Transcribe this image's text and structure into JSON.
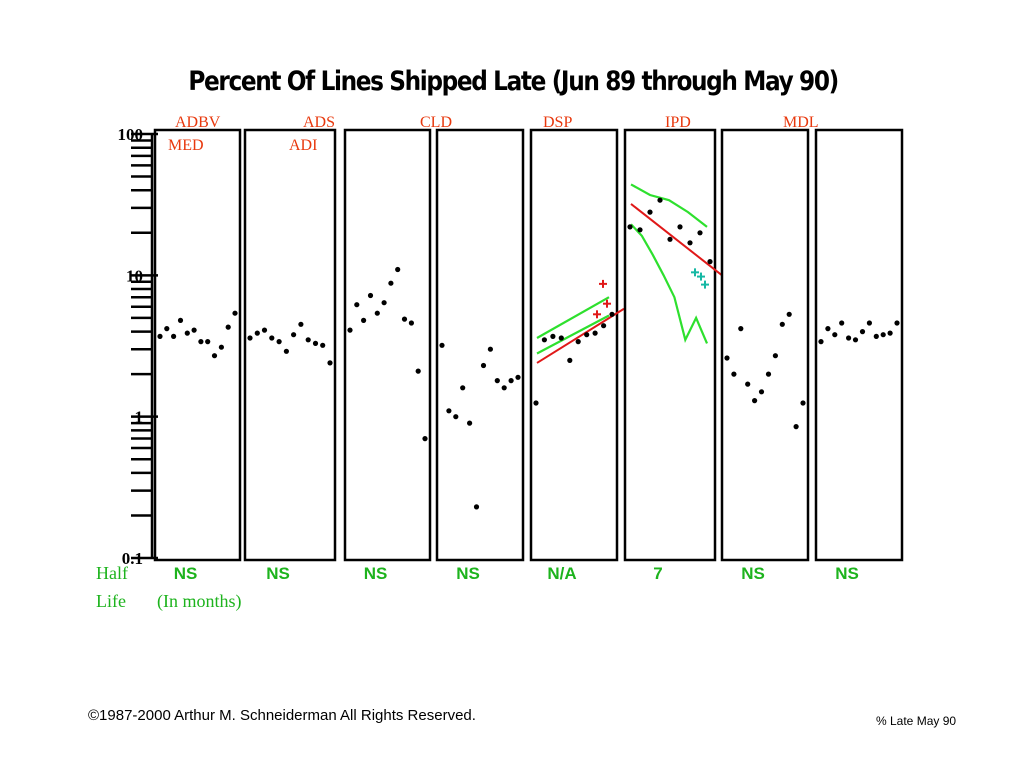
{
  "colors": {
    "label": "#e8380d",
    "half_life": "#1db31d",
    "fit_line": "#e01818",
    "plus_red": "#e01818",
    "plus_cyan": "#16b8a4",
    "points": "#000000"
  },
  "footer": {
    "copyright": "©1987-2000 Arthur M. Schneiderman  All Rights Reserved.",
    "slide_label": "% Late May 90"
  },
  "half_life": {
    "label_line1": "Half",
    "label_line2": "Life",
    "unit_note": "(In months)"
  },
  "chart_data": {
    "type": "scatter",
    "title": "Percent Of Lines Shipped Late (Jun 89 through May 90)",
    "y_scale": "log",
    "ylim": [
      0.1,
      100
    ],
    "y_ticks": [
      "100",
      "10",
      "1",
      "0.1"
    ],
    "panels": [
      {
        "labels": [
          "ADBV",
          "MED"
        ],
        "half_life": "NS",
        "points": [
          3.7,
          4.2,
          3.7,
          4.8,
          3.9,
          4.1,
          3.4,
          3.4,
          2.7,
          3.1,
          4.3,
          5.4
        ]
      },
      {
        "labels": [
          "ADS",
          "ADI"
        ],
        "half_life": "NS",
        "points": [
          3.6,
          3.9,
          4.1,
          3.6,
          3.4,
          2.9,
          3.8,
          4.5,
          3.5,
          3.3,
          3.2,
          2.4
        ]
      },
      {
        "labels": [
          "CLD"
        ],
        "half_life": "NS",
        "points": [
          4.1,
          6.2,
          4.8,
          7.2,
          5.4,
          6.4,
          8.8,
          11.0,
          4.9,
          4.6,
          2.1,
          0.7
        ]
      },
      {
        "labels": [],
        "half_life": "NS",
        "points": [
          3.2,
          1.1,
          1.0,
          1.6,
          0.9,
          0.23,
          2.3,
          3.0,
          1.8,
          1.6,
          1.8,
          1.9
        ]
      },
      {
        "labels": [
          "DSP"
        ],
        "half_life": "N/A",
        "points": [
          1.25,
          3.5,
          3.7,
          3.6,
          2.5,
          3.4,
          3.8,
          3.9,
          4.4,
          5.3
        ],
        "fit_line": [
          2.4,
          5.8
        ],
        "band_upper": [
          3.6,
          7.0
        ],
        "band_lower": [
          2.8,
          5.2
        ],
        "plus_red": [
          8.7,
          6.3,
          5.3
        ]
      },
      {
        "labels": [
          "IPD"
        ],
        "half_life": "7",
        "points": [
          22,
          21,
          28,
          34,
          18,
          22,
          17,
          20,
          12.5
        ],
        "fit_line": [
          32,
          10
        ],
        "band_upper": [
          44,
          37,
          34,
          28,
          22
        ],
        "band_lower": [
          23,
          19,
          14,
          10,
          7,
          3.5,
          5.0,
          3.3
        ],
        "plus_cyan": [
          9.8,
          8.6,
          10.5
        ]
      },
      {
        "labels": [
          "MDL"
        ],
        "half_life": "NS",
        "points": [
          2.6,
          2.0,
          4.2,
          1.7,
          1.3,
          1.5,
          2.0,
          2.7,
          4.5,
          5.3,
          0.85,
          1.25
        ]
      },
      {
        "labels": [],
        "half_life": "NS",
        "points": [
          3.4,
          4.2,
          3.8,
          4.6,
          3.6,
          3.5,
          4.0,
          4.6,
          3.7,
          3.8,
          3.9,
          4.6
        ]
      }
    ]
  }
}
